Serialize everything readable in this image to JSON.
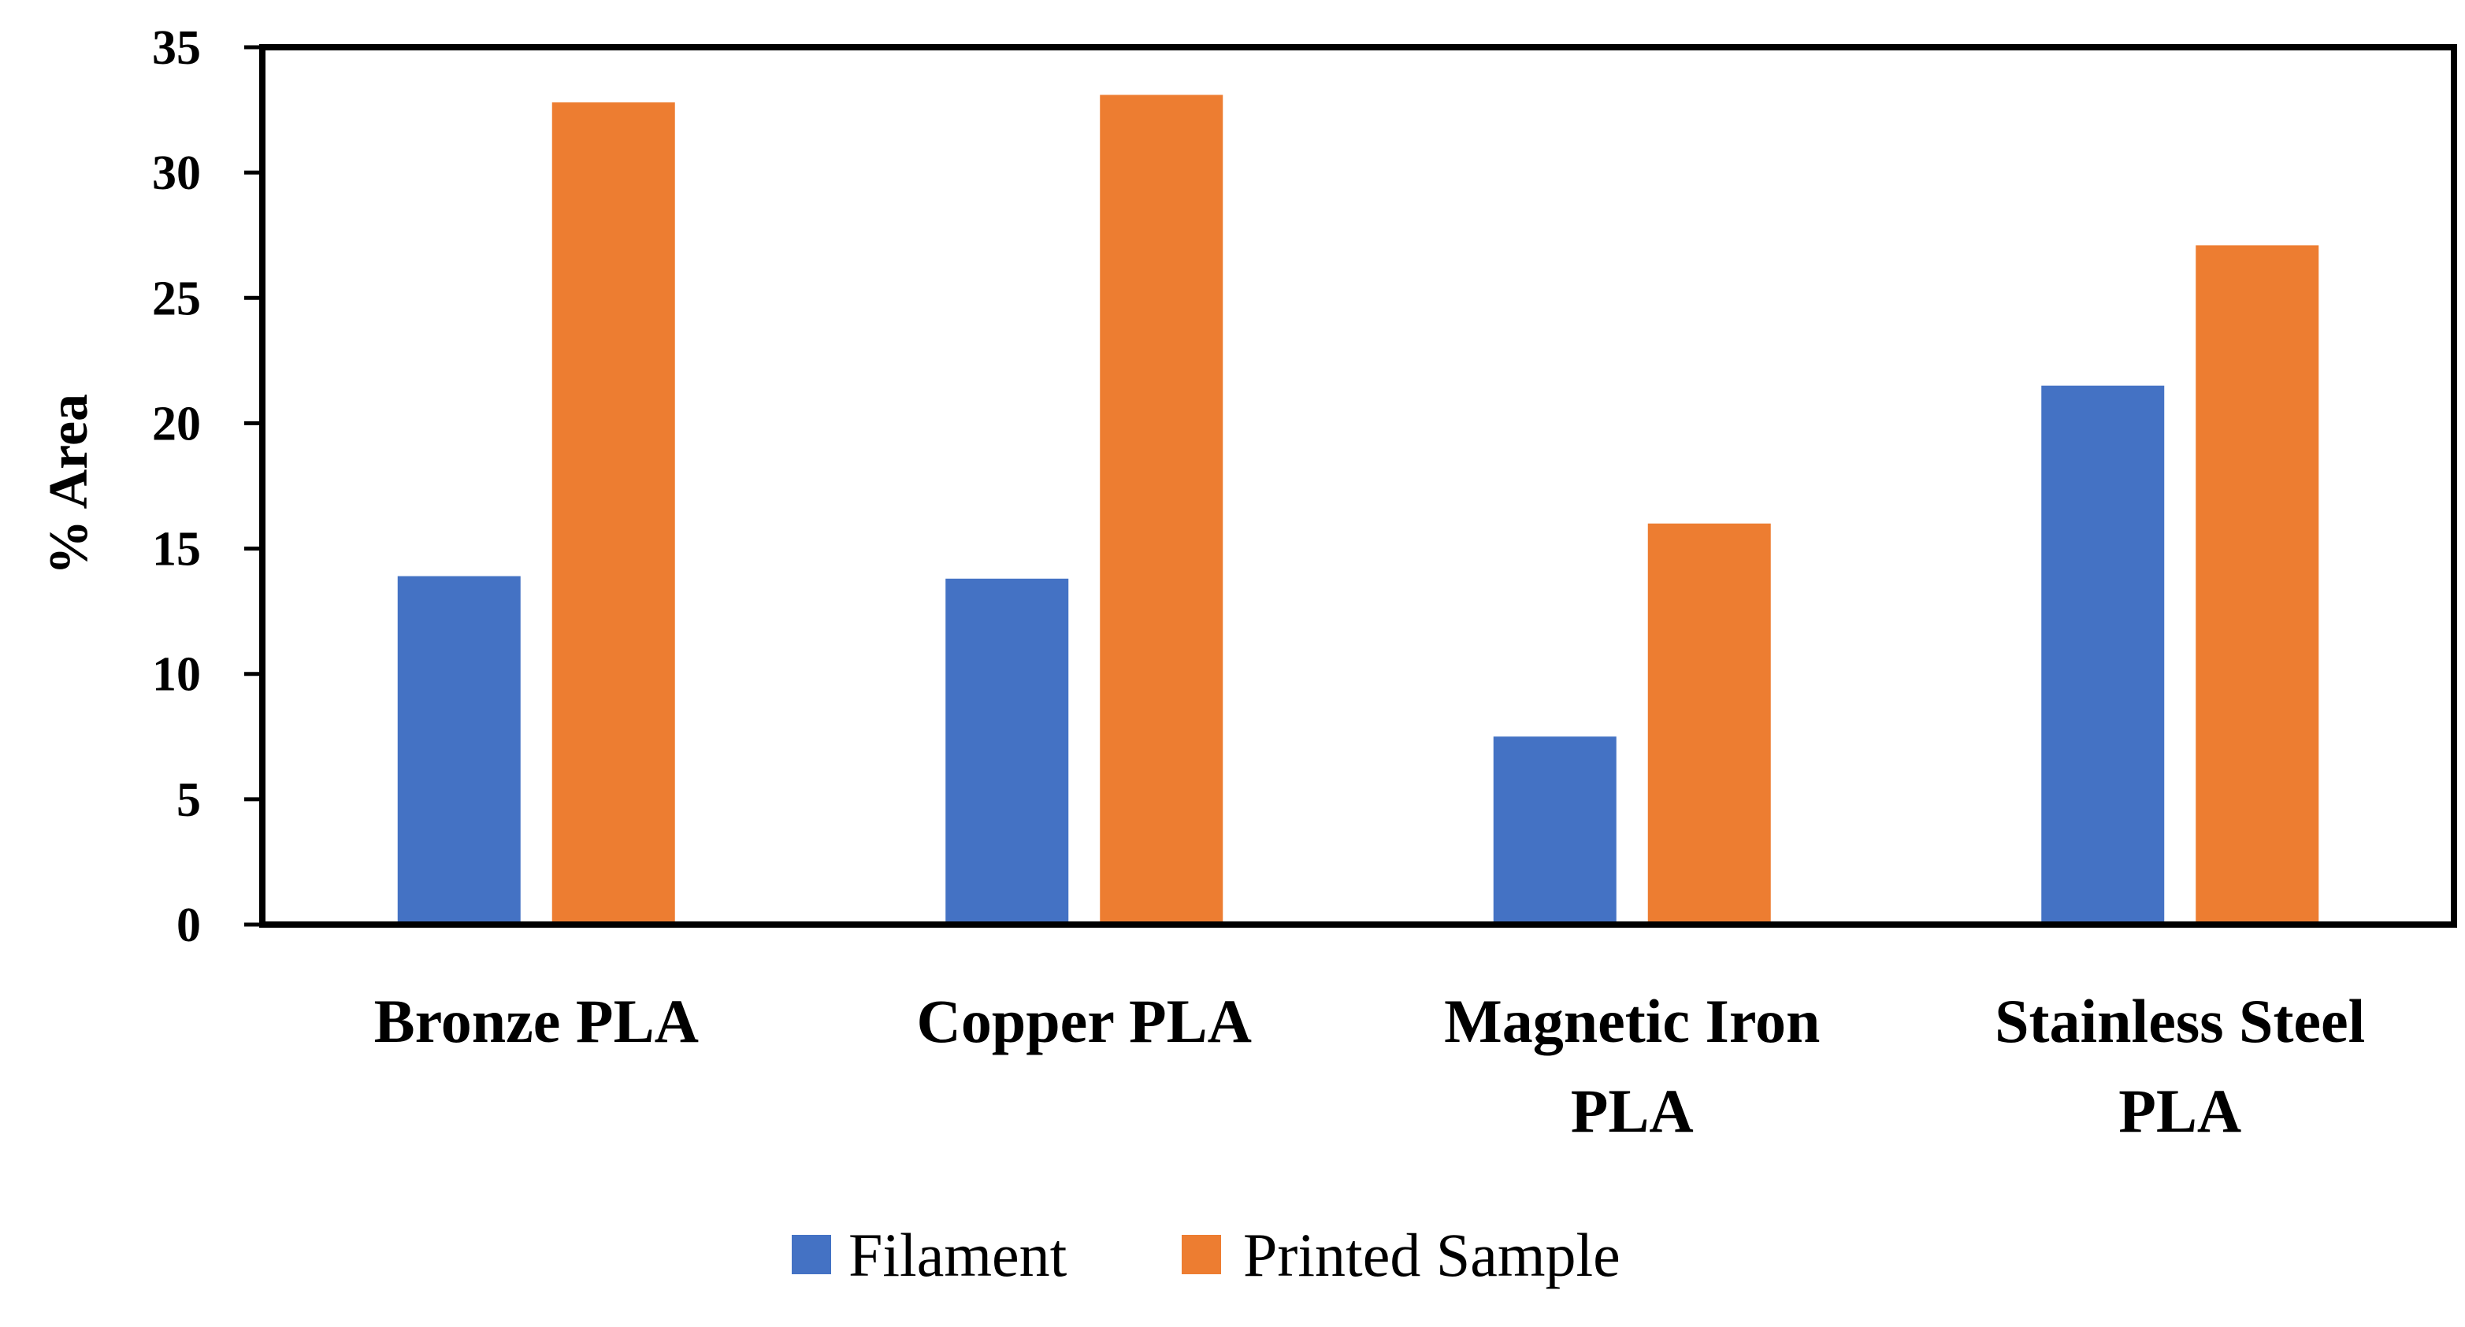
{
  "chart_data": {
    "type": "bar",
    "title": "",
    "xlabel": "",
    "ylabel": "% Area",
    "ylim": [
      0,
      35
    ],
    "yticks": [
      0,
      5,
      10,
      15,
      20,
      25,
      30,
      35
    ],
    "grid": false,
    "legend_position": "bottom",
    "categories": [
      [
        "Bronze PLA"
      ],
      [
        "Copper PLA"
      ],
      [
        "Magnetic Iron",
        "PLA"
      ],
      [
        "Stainless Steel",
        "PLA"
      ]
    ],
    "series": [
      {
        "name": "Filament",
        "color": "#4472C4",
        "values": [
          13.9,
          13.8,
          7.5,
          21.5
        ]
      },
      {
        "name": "Printed Sample",
        "color": "#ED7D31",
        "values": [
          32.8,
          33.1,
          16.0,
          27.1
        ]
      }
    ]
  }
}
